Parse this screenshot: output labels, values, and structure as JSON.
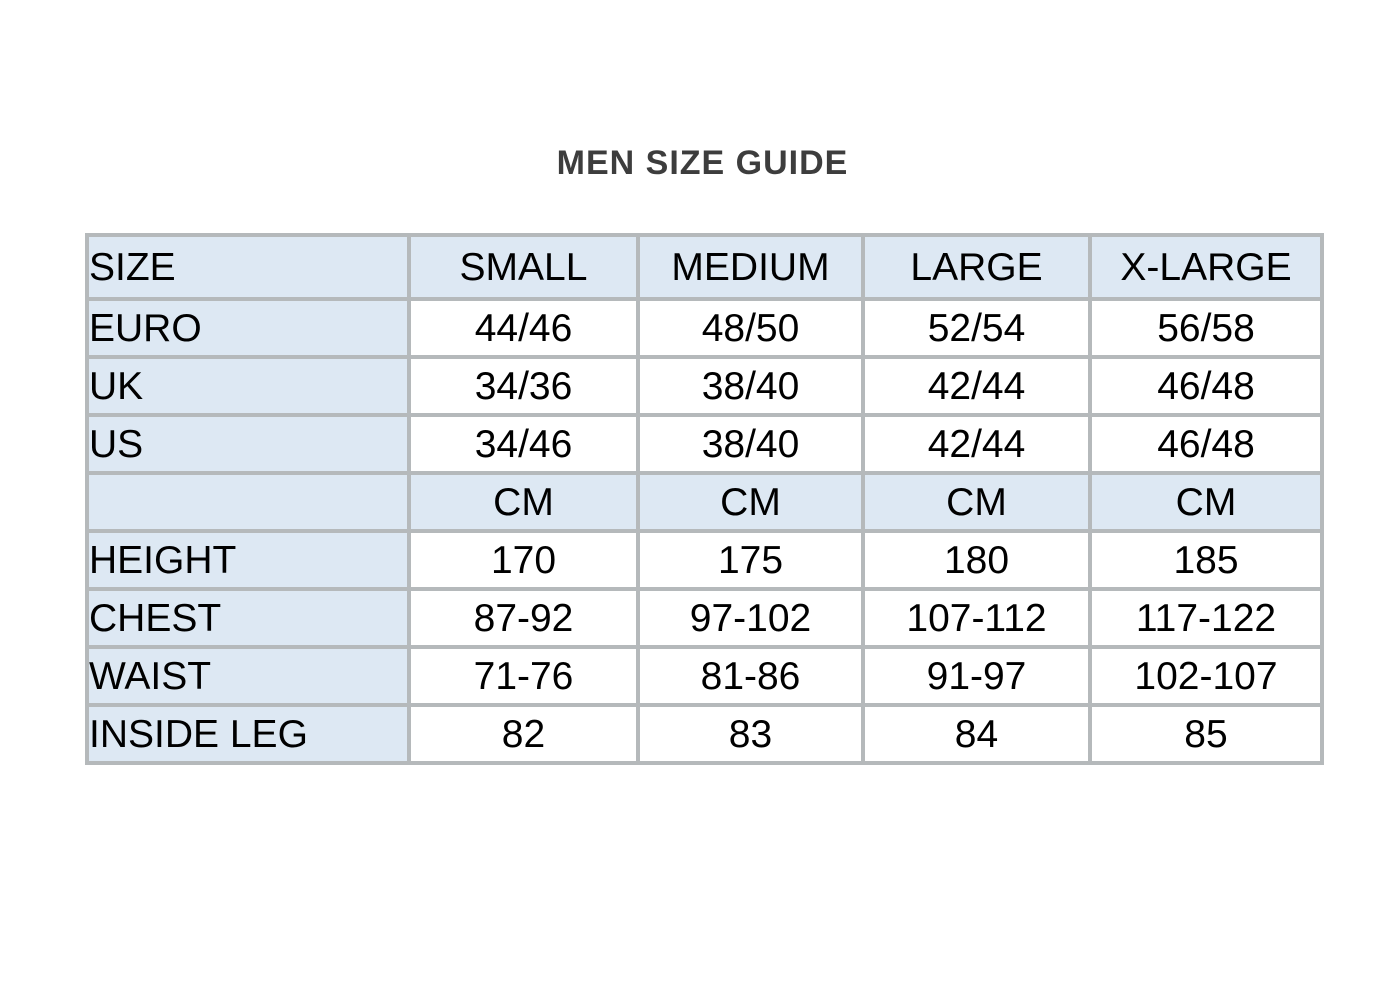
{
  "title": "MEN SIZE GUIDE",
  "table": {
    "columns": [
      "SIZE",
      "SMALL",
      "MEDIUM",
      "LARGE",
      "X-LARGE"
    ],
    "unit_label": "CM",
    "rows": [
      {
        "label": "EURO",
        "values": [
          "44/46",
          "48/50",
          "52/54",
          "56/58"
        ]
      },
      {
        "label": "UK",
        "values": [
          "34/36",
          "38/40",
          "42/44",
          "46/48"
        ]
      },
      {
        "label": "US",
        "values": [
          "34/46",
          "38/40",
          "42/44",
          "46/48"
        ]
      },
      {
        "label": "",
        "values": [
          "CM",
          "CM",
          "CM",
          "CM"
        ]
      },
      {
        "label": "HEIGHT",
        "values": [
          "170",
          "175",
          "180",
          "185"
        ]
      },
      {
        "label": "CHEST",
        "values": [
          "87-92",
          "97-102",
          "107-112",
          "117-122"
        ]
      },
      {
        "label": "WAIST",
        "values": [
          "71-76",
          "81-86",
          "91-97",
          "102-107"
        ]
      },
      {
        "label": "INSIDE LEG",
        "values": [
          "82",
          "83",
          "84",
          "85"
        ]
      }
    ]
  },
  "colors": {
    "shaded_background": "#dde8f3",
    "border": "#b5b9bb",
    "title_text": "#3d3d3d",
    "cell_text": "#000000"
  }
}
